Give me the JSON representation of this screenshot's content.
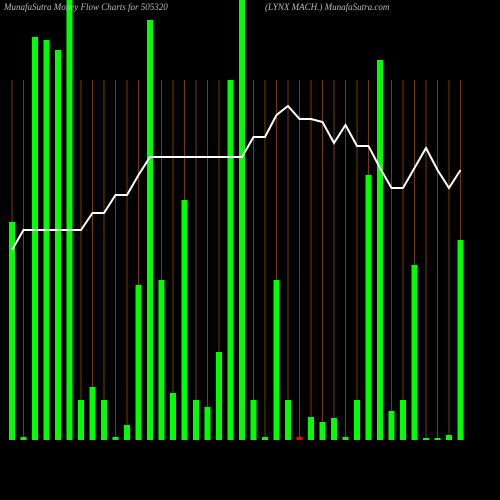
{
  "chart_data": {
    "type": "bar-line",
    "title": "MunafaSutra Money Flow Charts for 505320",
    "subtitle": "(LYNX  MACH.) MunafaSutra.com",
    "ylim": [
      0,
      440
    ],
    "grid": true,
    "grid_color": "#7a3b00",
    "series": [
      {
        "type": "bar",
        "color": "#00ff00",
        "colors": [
          "#00ff00",
          "#00ff00",
          "#00ff00",
          "#00ff00",
          "#00ff00",
          "#00ff00",
          "#00ff00",
          "#00ff00",
          "#00ff00",
          "#00ff00",
          "#00ff00",
          "#00ff00",
          "#00ff00",
          "#00ff00",
          "#00ff00",
          "#00ff00",
          "#00ff00",
          "#00ff00",
          "#00ff00",
          "#00ff00",
          "#00ff00",
          "#00ff00",
          "#00ff00",
          "#00ff00",
          "#00ff00",
          "#ff0000",
          "#00ff00",
          "#00ff00",
          "#00ff00",
          "#00ff00",
          "#00ff00",
          "#00ff00",
          "#00ff00",
          "#00ff00",
          "#00ff00",
          "#00ff00",
          "#00ff00",
          "#00ff00",
          "#00ff00",
          "#00ff00"
        ],
        "values": [
          218,
          3,
          403,
          400,
          390,
          440,
          40,
          53,
          40,
          3,
          15,
          155,
          420,
          160,
          47,
          240,
          40,
          33,
          88,
          360,
          440,
          40,
          3,
          160,
          40,
          3,
          23,
          18,
          22,
          3,
          40,
          265,
          380,
          29,
          40,
          175,
          2,
          2,
          5,
          200
        ]
      },
      {
        "type": "line",
        "color": "#ffffff",
        "values": [
          190,
          210,
          210,
          210,
          210,
          210,
          210,
          227,
          227,
          245,
          245,
          265,
          283,
          283,
          283,
          283,
          283,
          283,
          283,
          283,
          283,
          303,
          303,
          325,
          334,
          321,
          321,
          318,
          297,
          315,
          294,
          294,
          272,
          252,
          252,
          272,
          292,
          270,
          252,
          270
        ]
      }
    ]
  }
}
